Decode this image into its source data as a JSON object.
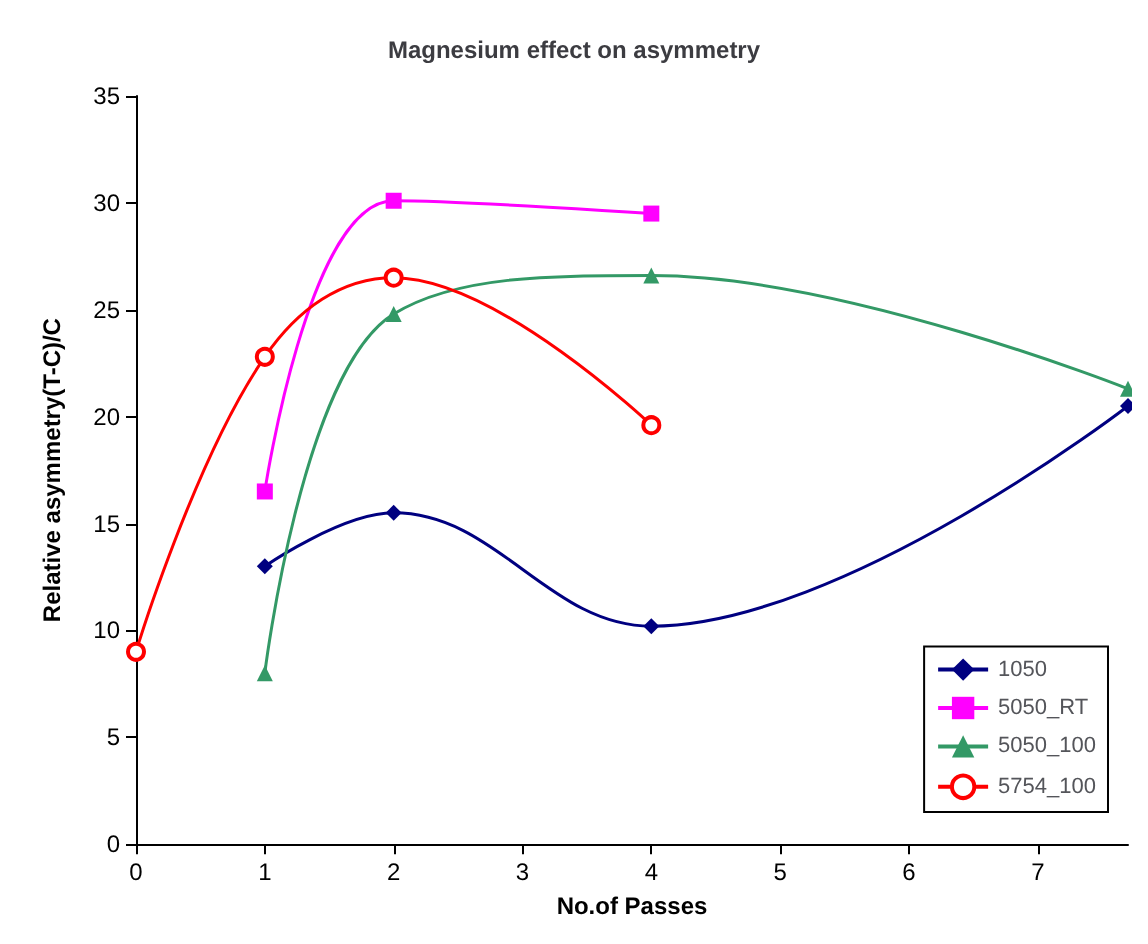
{
  "chart_data": {
    "type": "line",
    "title": "Magnesium effect on asymmetry",
    "xlabel": "No.of Passes",
    "ylabel": "Relative asymmetry(T-C)/C",
    "xlim": [
      0,
      7.7
    ],
    "xticks": [
      0,
      1,
      2,
      3,
      4,
      5,
      6,
      7
    ],
    "ylim": [
      0,
      35
    ],
    "yticks": [
      0,
      5,
      10,
      15,
      20,
      25,
      30,
      35
    ],
    "grid": false,
    "legend": "bottom right",
    "series": [
      {
        "name": "1050",
        "color": "#000080",
        "marker": "diamond",
        "x": [
          1,
          2,
          4,
          7.7
        ],
        "values": [
          13,
          15.5,
          10.2,
          20.5
        ]
      },
      {
        "name": "5050_RT",
        "color": "#ff00ff",
        "marker": "square",
        "x": [
          1,
          2,
          4
        ],
        "values": [
          16.5,
          30.1,
          29.5
        ]
      },
      {
        "name": "5050_100",
        "color": "#339966",
        "marker": "triangle",
        "x": [
          1,
          2,
          4,
          7.7
        ],
        "values": [
          8,
          24.8,
          26.6,
          21.3
        ]
      },
      {
        "name": "5754_100",
        "color": "#ff0000",
        "marker": "circle",
        "x": [
          0,
          1,
          2,
          4
        ],
        "values": [
          9,
          22.8,
          26.5,
          19.6
        ]
      }
    ]
  }
}
